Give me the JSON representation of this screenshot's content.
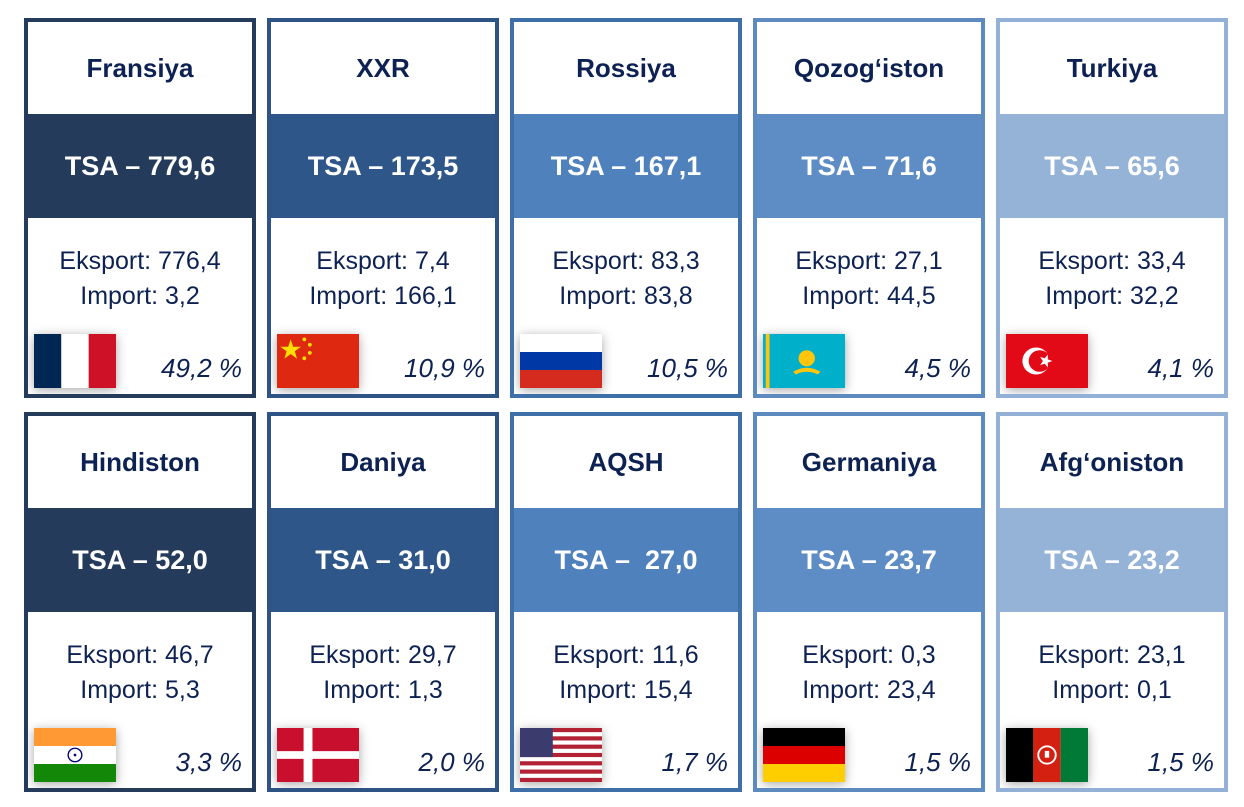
{
  "cards": [
    {
      "country": "Fransiya",
      "tsa": "TSA – 779,6",
      "export": "Eksport: 776,4",
      "import": "Import: 3,2",
      "share": "49,2 %",
      "flag": "france-flag-icon"
    },
    {
      "country": "XXR",
      "tsa": "TSA – 173,5",
      "export": "Eksport: 7,4",
      "import": "Import: 166,1",
      "share": "10,9 %",
      "flag": "china-flag-icon"
    },
    {
      "country": "Rossiya",
      "tsa": "TSA – 167,1",
      "export": "Eksport: 83,3",
      "import": "Import: 83,8",
      "share": "10,5 %",
      "flag": "russia-flag-icon"
    },
    {
      "country": "Qozog‘iston",
      "tsa": "TSA – 71,6",
      "export": "Eksport: 27,1",
      "import": "Import: 44,5",
      "share": "4,5 %",
      "flag": "kazakhstan-flag-icon"
    },
    {
      "country": "Turkiya",
      "tsa": "TSA – 65,6",
      "export": "Eksport: 33,4",
      "import": "Import: 32,2",
      "share": "4,1 %",
      "flag": "turkey-flag-icon"
    },
    {
      "country": "Hindiston",
      "tsa": "TSA – 52,0",
      "export": "Eksport: 46,7",
      "import": "Import: 5,3",
      "share": "3,3 %",
      "flag": "india-flag-icon"
    },
    {
      "country": "Daniya",
      "tsa": "TSA – 31,0",
      "export": "Eksport: 29,7",
      "import": "Import: 1,3",
      "share": "2,0 %",
      "flag": "denmark-flag-icon"
    },
    {
      "country": "AQSH",
      "tsa": "TSA –  27,0",
      "export": "Eksport: 11,6",
      "import": "Import: 15,4",
      "share": "1,7 %",
      "flag": "usa-flag-icon"
    },
    {
      "country": "Germaniya",
      "tsa": "TSA – 23,7",
      "export": "Eksport: 0,3",
      "import": "Import: 23,4",
      "share": "1,5 %",
      "flag": "germany-flag-icon"
    },
    {
      "country": "Afg‘oniston",
      "tsa": "TSA – 23,2",
      "export": "Eksport: 23,1",
      "import": "Import: 0,1",
      "share": "1,5 %",
      "flag": "afghanistan-flag-icon"
    }
  ],
  "colors": {
    "heading_text": "#0d2252",
    "band_shades": [
      "#243b5c",
      "#2f5689",
      "#4f81bd",
      "#5e8cc4",
      "#95b3d7"
    ]
  }
}
